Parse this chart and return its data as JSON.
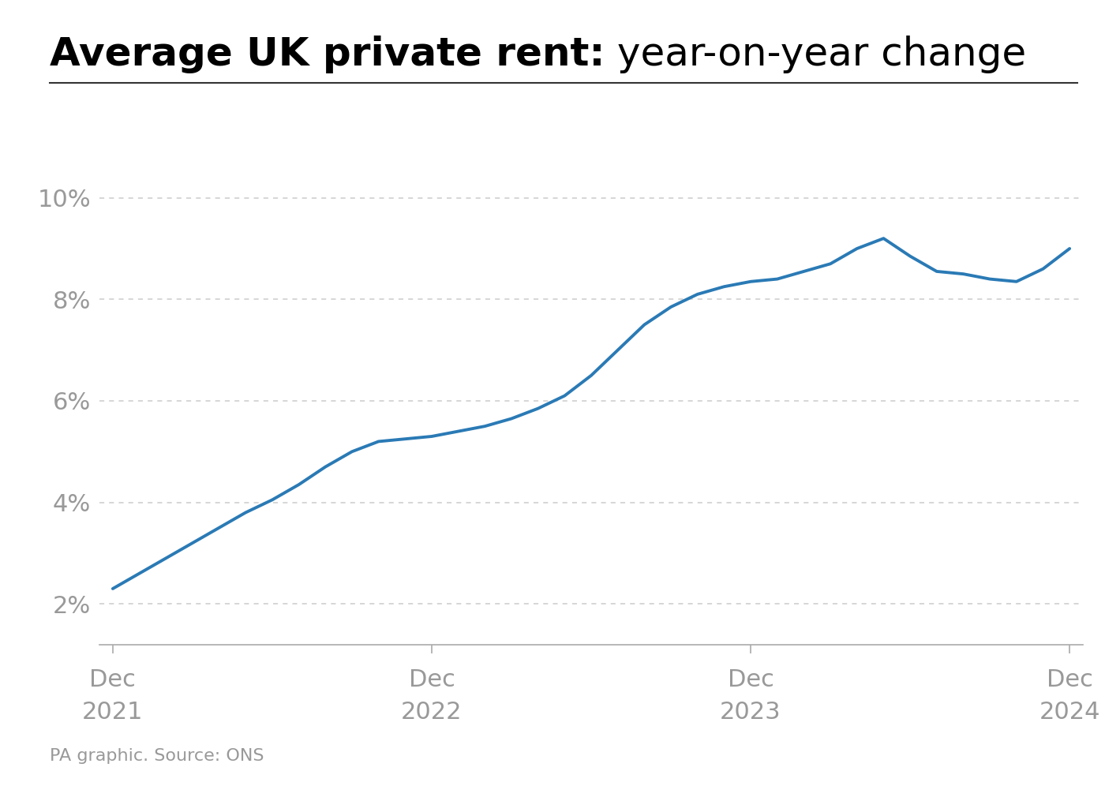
{
  "title_bold": "Average UK private rent:",
  "title_normal": " year-on-year change",
  "source": "PA graphic. Source: ONS",
  "line_color": "#2a7ab5",
  "line_width": 2.8,
  "background_color": "#ffffff",
  "yticks": [
    2,
    4,
    6,
    8,
    10
  ],
  "ylim": [
    1.2,
    10.8
  ],
  "xtick_labels": [
    "Dec\n2021",
    "Dec\n2022",
    "Dec\n2023",
    "Dec\n2024"
  ],
  "grid_color": "#cccccc",
  "tick_color": "#aaaaaa",
  "label_color": "#999999",
  "title_color": "#000000",
  "separator_color": "#333333",
  "dates_numeric": [
    0,
    1,
    2,
    3,
    4,
    5,
    6,
    7,
    8,
    9,
    10,
    11,
    12,
    13,
    14,
    15,
    16,
    17,
    18,
    19,
    20,
    21,
    22,
    23,
    24,
    25,
    26,
    27,
    28,
    29,
    30,
    31,
    32,
    33,
    34,
    35,
    36
  ],
  "values": [
    2.3,
    2.6,
    2.9,
    3.2,
    3.5,
    3.8,
    4.05,
    4.35,
    4.7,
    5.0,
    5.2,
    5.25,
    5.3,
    5.4,
    5.5,
    5.65,
    5.85,
    6.1,
    6.5,
    7.0,
    7.5,
    7.85,
    8.1,
    8.25,
    8.35,
    8.4,
    8.55,
    8.7,
    9.0,
    9.2,
    8.85,
    8.55,
    8.5,
    8.4,
    8.35,
    8.6,
    9.0
  ],
  "xtick_positions": [
    0,
    12,
    24,
    36
  ],
  "title_fontsize": 36,
  "tick_fontsize": 22,
  "source_fontsize": 16
}
